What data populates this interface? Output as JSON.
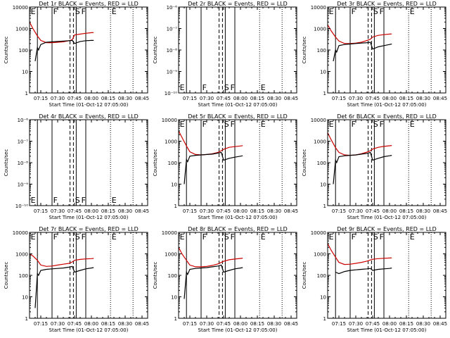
{
  "figure": {
    "xlabel": "Start Time (01-Oct-12 07:05:00)",
    "ylabel": "Counts/sec",
    "x_ticks": [
      "07:15",
      "07:30",
      "07:45",
      "08:00",
      "08:15",
      "08:30",
      "08:45"
    ],
    "x_tick_minutes": [
      15,
      30,
      45,
      60,
      75,
      90,
      105
    ],
    "x_range_minutes": [
      5,
      110
    ],
    "series_colors": {
      "events": "#000000",
      "lld": "#cc0000"
    },
    "markers": {
      "solid_minutes": [
        12,
        25,
        46.5,
        55
      ],
      "dashed_minutes": [
        41,
        44
      ],
      "dotted_minutes": [
        77,
        97
      ],
      "letters": [
        {
          "text": "E",
          "minute": 6
        },
        {
          "text": "F",
          "minute": 26
        },
        {
          "text": "S",
          "minute": 45.5
        },
        {
          "text": "F",
          "minute": 51
        },
        {
          "text": "E",
          "minute": 78
        }
      ]
    }
  },
  "chart_data": [
    {
      "type": "line",
      "title": "Det 1r BLACK = Events, RED = LLD",
      "yscale": "log",
      "ylim": [
        1,
        10000
      ],
      "y_tick_labels": [
        "1",
        "10",
        "100",
        "1000",
        "10000"
      ],
      "series": [
        {
          "name": "RED = LLD",
          "x": [
            5,
            8,
            12,
            15,
            20,
            25,
            30,
            35,
            40,
            43,
            45,
            50,
            55,
            60,
            62
          ],
          "values": [
            2000,
            1000,
            450,
            280,
            220,
            220,
            230,
            240,
            270,
            300,
            500,
            550,
            600,
            640,
            650
          ]
        },
        {
          "name": "BLACK = Events",
          "x": [
            10,
            12,
            13,
            15,
            20,
            25,
            30,
            35,
            40,
            43,
            45,
            50,
            55,
            60,
            62
          ],
          "values": [
            30,
            130,
            100,
            180,
            230,
            240,
            250,
            260,
            270,
            280,
            200,
            250,
            270,
            280,
            280
          ]
        }
      ]
    },
    {
      "type": "line",
      "title": "Det 2r BLACK = Events, RED = LLD",
      "yscale": "log",
      "ylim": [
        1e-10,
        1e-06
      ],
      "y_tick_labels": [
        "10⁻¹⁰",
        "10⁻⁹",
        "10⁻⁸",
        "10⁻⁷",
        "10⁻⁶"
      ],
      "series": []
    },
    {
      "type": "line",
      "title": "Det 3r BLACK = Events, RED = LLD",
      "yscale": "log",
      "ylim": [
        1,
        10000
      ],
      "y_tick_labels": [
        "1",
        "10",
        "100",
        "1000",
        "10000"
      ],
      "series": [
        {
          "name": "RED = LLD",
          "x": [
            5,
            8,
            12,
            15,
            20,
            25,
            30,
            35,
            40,
            43,
            45,
            50,
            55,
            60,
            62
          ],
          "values": [
            1500,
            800,
            400,
            260,
            200,
            200,
            210,
            230,
            280,
            320,
            400,
            480,
            520,
            550,
            560
          ]
        },
        {
          "name": "BLACK = Events",
          "x": [
            10,
            12,
            13,
            15,
            20,
            25,
            30,
            35,
            40,
            43,
            45,
            50,
            55,
            60,
            62
          ],
          "values": [
            30,
            100,
            80,
            160,
            180,
            190,
            200,
            210,
            220,
            230,
            110,
            140,
            160,
            180,
            190
          ]
        }
      ]
    },
    {
      "type": "line",
      "title": "Det 4r BLACK = Events, RED = LLD",
      "yscale": "log",
      "ylim": [
        1e-10,
        1e-06
      ],
      "y_tick_labels": [
        "10⁻¹⁰",
        "10⁻⁹",
        "10⁻⁸",
        "10⁻⁷",
        "10⁻⁶"
      ],
      "series": []
    },
    {
      "type": "line",
      "title": "Det 5r BLACK = Events, RED = LLD",
      "yscale": "log",
      "ylim": [
        1,
        10000
      ],
      "y_tick_labels": [
        "1",
        "10",
        "100",
        "1000",
        "10000"
      ],
      "series": [
        {
          "name": "RED = LLD",
          "x": [
            5,
            8,
            12,
            15,
            20,
            25,
            30,
            35,
            40,
            43,
            45,
            50,
            55,
            60,
            62
          ],
          "values": [
            3000,
            1500,
            600,
            320,
            240,
            230,
            240,
            260,
            300,
            360,
            420,
            520,
            560,
            600,
            620
          ]
        },
        {
          "name": "BLACK = Events",
          "x": [
            10,
            12,
            13,
            15,
            20,
            25,
            30,
            35,
            40,
            43,
            45,
            50,
            55,
            60,
            62
          ],
          "values": [
            10,
            140,
            110,
            200,
            220,
            230,
            240,
            250,
            280,
            300,
            130,
            160,
            180,
            200,
            210
          ]
        }
      ]
    },
    {
      "type": "line",
      "title": "Det 6r BLACK = Events, RED = LLD",
      "yscale": "log",
      "ylim": [
        1,
        10000
      ],
      "y_tick_labels": [
        "1",
        "10",
        "100",
        "1000",
        "10000"
      ],
      "series": [
        {
          "name": "RED = LLD",
          "x": [
            5,
            8,
            12,
            15,
            20,
            25,
            30,
            35,
            40,
            43,
            45,
            50,
            55,
            60,
            62
          ],
          "values": [
            2500,
            1200,
            500,
            300,
            230,
            220,
            230,
            260,
            310,
            360,
            430,
            520,
            570,
            610,
            630
          ]
        },
        {
          "name": "BLACK = Events",
          "x": [
            10,
            12,
            13,
            15,
            20,
            25,
            30,
            35,
            40,
            43,
            45,
            50,
            55,
            60,
            62
          ],
          "values": [
            10,
            130,
            100,
            190,
            210,
            220,
            230,
            250,
            270,
            300,
            130,
            160,
            190,
            210,
            220
          ]
        }
      ]
    },
    {
      "type": "line",
      "title": "Det 7r BLACK = Events, RED = LLD",
      "yscale": "log",
      "ylim": [
        1,
        10000
      ],
      "y_tick_labels": [
        "1",
        "10",
        "100",
        "1000",
        "10000"
      ],
      "series": [
        {
          "name": "RED = LLD",
          "x": [
            5,
            8,
            12,
            15,
            20,
            25,
            30,
            35,
            40,
            43,
            45,
            50,
            55,
            60,
            62
          ],
          "values": [
            1000,
            800,
            500,
            300,
            260,
            270,
            300,
            330,
            360,
            420,
            500,
            550,
            580,
            600,
            610
          ]
        },
        {
          "name": "BLACK = Events",
          "x": [
            10,
            12,
            13,
            15,
            20,
            25,
            30,
            35,
            40,
            43,
            45,
            50,
            55,
            60,
            62
          ],
          "values": [
            3,
            120,
            100,
            170,
            190,
            200,
            210,
            220,
            240,
            260,
            140,
            170,
            200,
            220,
            230
          ]
        }
      ]
    },
    {
      "type": "line",
      "title": "Det 8r BLACK = Events, RED = LLD",
      "yscale": "log",
      "ylim": [
        1,
        10000
      ],
      "y_tick_labels": [
        "1",
        "10",
        "100",
        "1000",
        "10000"
      ],
      "series": [
        {
          "name": "RED = LLD",
          "x": [
            5,
            8,
            12,
            15,
            20,
            25,
            30,
            35,
            40,
            43,
            45,
            50,
            55,
            60,
            62
          ],
          "values": [
            2000,
            1000,
            500,
            300,
            250,
            250,
            260,
            290,
            340,
            400,
            450,
            530,
            570,
            610,
            630
          ]
        },
        {
          "name": "BLACK = Events",
          "x": [
            10,
            12,
            13,
            15,
            20,
            25,
            30,
            35,
            40,
            43,
            45,
            50,
            55,
            60,
            62
          ],
          "values": [
            8,
            140,
            110,
            190,
            210,
            220,
            230,
            250,
            270,
            300,
            140,
            170,
            200,
            220,
            230
          ]
        }
      ]
    },
    {
      "type": "line",
      "title": "Det 9r BLACK = Events, RED = LLD",
      "yscale": "log",
      "ylim": [
        1,
        10000
      ],
      "y_tick_labels": [
        "1",
        "10",
        "100",
        "1000",
        "10000"
      ],
      "series": [
        {
          "name": "RED = LLD",
          "x": [
            5,
            8,
            12,
            15,
            20,
            25,
            30,
            35,
            40,
            43,
            45,
            50,
            55,
            60,
            62
          ],
          "values": [
            3000,
            1500,
            700,
            400,
            320,
            330,
            360,
            400,
            460,
            520,
            560,
            600,
            620,
            640,
            650
          ]
        },
        {
          "name": "BLACK = Events",
          "x": [
            12,
            15,
            20,
            25,
            30,
            35,
            40,
            43,
            45,
            50,
            55,
            60,
            62
          ],
          "values": [
            140,
            120,
            150,
            170,
            180,
            190,
            200,
            210,
            170,
            190,
            200,
            210,
            220
          ]
        }
      ]
    }
  ]
}
